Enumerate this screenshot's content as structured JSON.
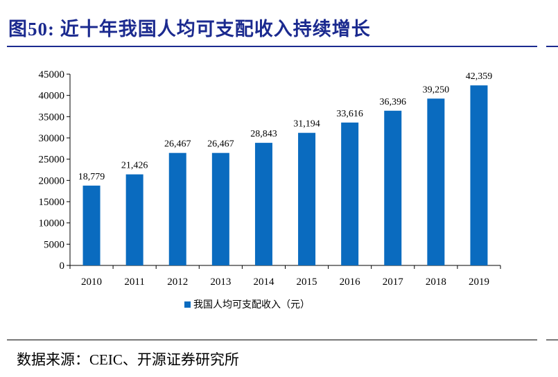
{
  "header": {
    "figure_title": "图50:  近十年我国人均可支配收入持续增长"
  },
  "footer": {
    "source_note": "数据来源：CEIC、开源证券研究所"
  },
  "colors": {
    "title": "#1b2a8f",
    "bar": "#0a6bbf"
  },
  "chart_data": {
    "type": "bar",
    "categories": [
      "2010",
      "2011",
      "2012",
      "2013",
      "2014",
      "2015",
      "2016",
      "2017",
      "2018",
      "2019"
    ],
    "series": [
      {
        "name": "我国人均可支配收入（元）",
        "values": [
          18779,
          21426,
          26467,
          26467,
          28843,
          31194,
          33616,
          36396,
          39250,
          42359
        ],
        "data_labels": [
          "18,779",
          "21,426",
          "26,467",
          "26,467",
          "28,843",
          "31,194",
          "33,616",
          "36,396",
          "39,250",
          "42,359"
        ]
      }
    ],
    "ylim": [
      0,
      45000
    ],
    "yticks": [
      "0",
      "5000",
      "10000",
      "15000",
      "20000",
      "25000",
      "30000",
      "35000",
      "40000",
      "45000"
    ],
    "legend_position": "bottom",
    "grid": false
  }
}
